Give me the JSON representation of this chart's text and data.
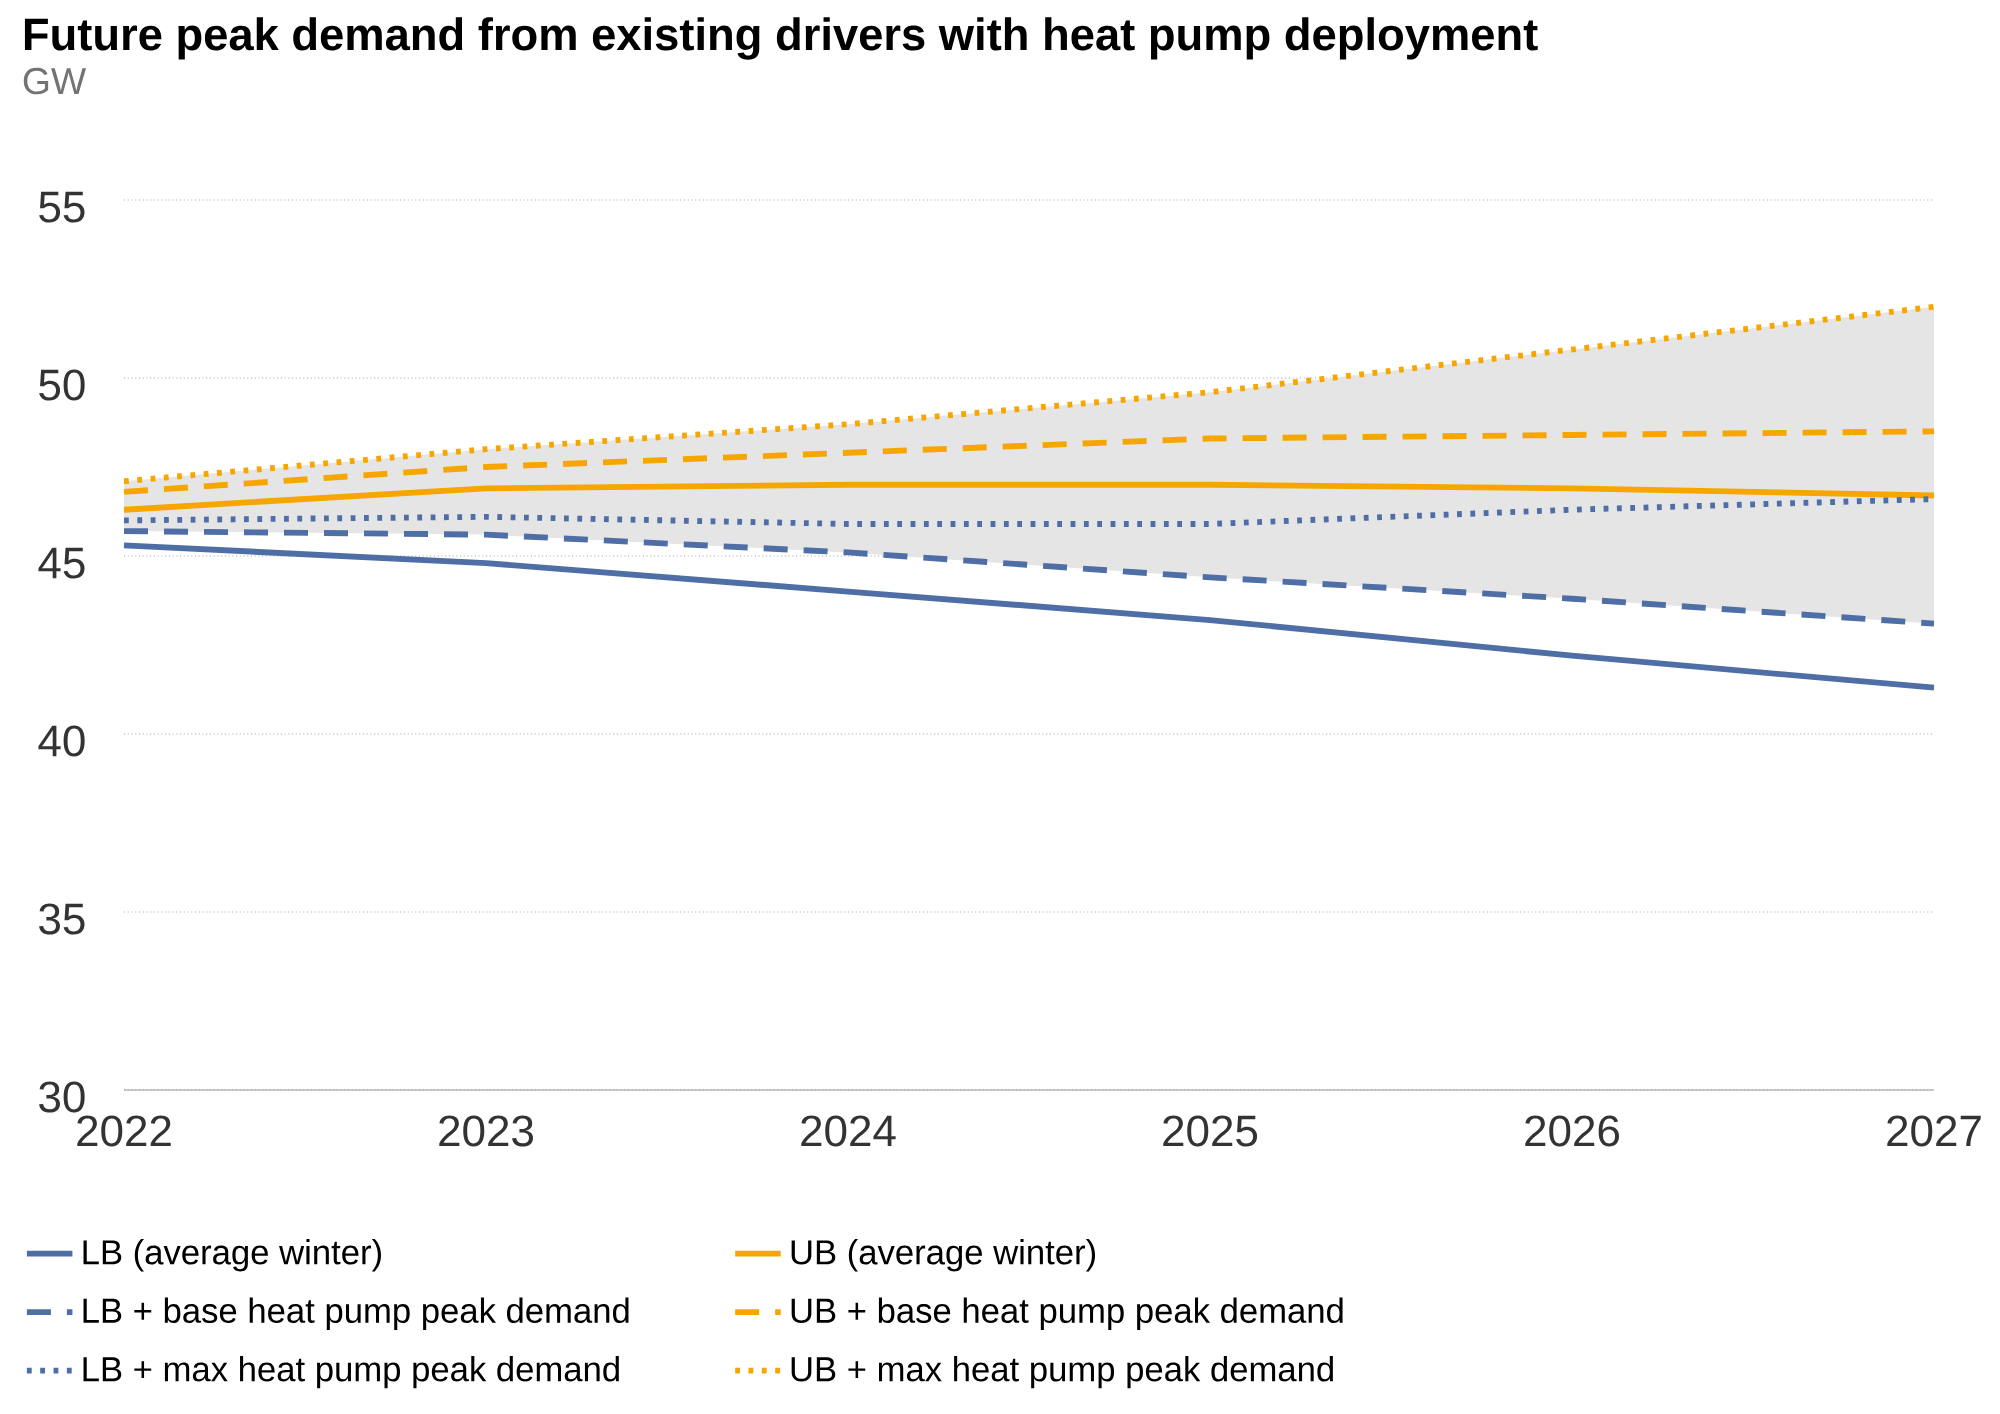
{
  "chart_data": {
    "type": "line",
    "title": "Future peak demand from existing drivers with heat pump deployment",
    "subtitle": "GW",
    "x": [
      2022,
      2023,
      2024,
      2025,
      2026,
      2027
    ],
    "xlim": [
      2022,
      2027
    ],
    "xticks": [
      2022,
      2023,
      2024,
      2025,
      2026,
      2027
    ],
    "ylim": [
      30,
      55
    ],
    "yticks": [
      30,
      35,
      40,
      45,
      50,
      55
    ],
    "grid": "y",
    "legend": "bottom",
    "series": [
      {
        "name": "LB (average winter)",
        "color": "#4e6ea5",
        "line_style": "solid",
        "values": [
          45.3,
          44.8,
          44.0,
          43.2,
          42.2,
          41.3
        ]
      },
      {
        "name": "UB (average winter)",
        "color": "#f7a600",
        "line_style": "solid",
        "values": [
          46.3,
          46.9,
          47.0,
          47.0,
          46.9,
          46.7
        ]
      },
      {
        "name": "LB + base heat pump peak demand",
        "color": "#4e6ea5",
        "line_style": "dashed",
        "values": [
          45.7,
          45.6,
          45.1,
          44.4,
          43.8,
          43.1
        ]
      },
      {
        "name": "UB + base heat pump peak demand",
        "color": "#f7a600",
        "line_style": "dashed",
        "values": [
          46.8,
          47.5,
          47.9,
          48.3,
          48.4,
          48.5
        ]
      },
      {
        "name": "LB + max heat pump peak demand",
        "color": "#4e6ea5",
        "line_style": "dotted",
        "values": [
          46.0,
          46.1,
          45.9,
          45.9,
          46.3,
          46.6
        ]
      },
      {
        "name": "UB + max heat pump peak demand",
        "color": "#f7a600",
        "line_style": "dotted",
        "values": [
          47.1,
          48.0,
          48.7,
          49.6,
          50.8,
          52.0
        ],
        "lower": [
          45.7,
          45.6,
          45.1,
          44.4,
          43.8,
          43.1
        ],
        "upper": [
          47.1,
          48.0,
          48.7,
          49.6,
          50.8,
          52.0
        ]
      }
    ]
  }
}
